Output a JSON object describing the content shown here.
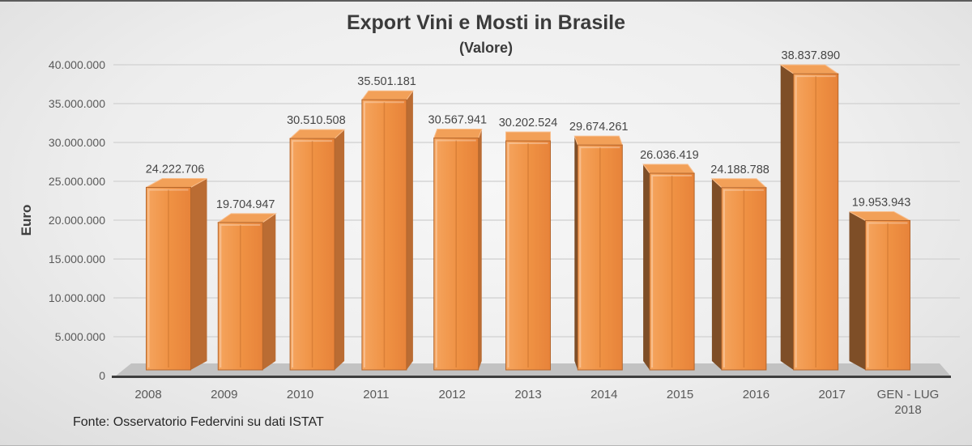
{
  "title": "Export Vini e Mosti in Brasile",
  "subtitle": "(Valore)",
  "source_note": "Fonte: Osservatorio Federvini su dati ISTAT",
  "chart_data": {
    "type": "bar",
    "variant": "3d-column",
    "title": "Export Vini e Mosti in Brasile",
    "subtitle": "(Valore)",
    "ylabel": "Euro",
    "xlabel": "",
    "categories": [
      "2008",
      "2009",
      "2010",
      "2011",
      "2012",
      "2013",
      "2014",
      "2015",
      "2016",
      "2017",
      "GEN - LUG 2018"
    ],
    "values": [
      24222706,
      19704947,
      30510508,
      35501181,
      30567941,
      30202524,
      29674261,
      26036419,
      24188788,
      38837890,
      19953943
    ],
    "ylim": [
      0,
      40000000
    ],
    "ytick_step": 5000000,
    "grid": true,
    "legend": "none",
    "colors": {
      "bar_front": "#EF9143",
      "bar_front_light": "#F5A55F",
      "bar_front_dark": "#E7833A",
      "bar_side_right": "#BA6C33",
      "bar_side_left": "#7E4E27",
      "bar_top": "#F2A058",
      "bar_outline": "#B5662C",
      "bar_top_edge": "#F8BE8D",
      "grid_line": "#D5D5D5",
      "axis_line": "#3D3D3D",
      "floor": "#C2C2C2",
      "value_label": "#464646",
      "tick_label": "#595959",
      "title_text": "#3B3B3B"
    }
  }
}
